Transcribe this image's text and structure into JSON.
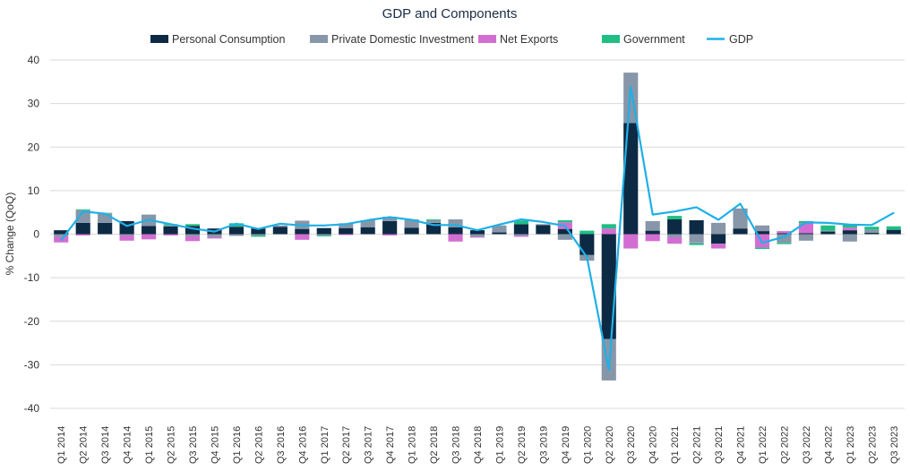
{
  "chart_data": {
    "type": "bar",
    "title": "GDP and Components",
    "ylabel": "% Change (QoQ)",
    "xlabel": "",
    "ylim": [
      -40,
      40
    ],
    "yticks": [
      40,
      30,
      20,
      10,
      0,
      -10,
      -20,
      -30,
      -40
    ],
    "categories": [
      "Q1 2014",
      "Q2 2014",
      "Q3 2014",
      "Q4 2014",
      "Q1 2015",
      "Q2 2015",
      "Q3 2015",
      "Q4 2015",
      "Q1 2016",
      "Q2 2016",
      "Q3 2016",
      "Q4 2016",
      "Q1 2017",
      "Q2 2017",
      "Q3 2017",
      "Q4 2017",
      "Q1 2018",
      "Q2 2018",
      "Q3 2018",
      "Q4 2018",
      "Q1 2019",
      "Q2 2019",
      "Q3 2019",
      "Q4 2019",
      "Q1 2020",
      "Q2 2020",
      "Q3 2020",
      "Q4 2020",
      "Q1 2021",
      "Q2 2021",
      "Q3 2021",
      "Q4 2021",
      "Q1 2022",
      "Q2 2022",
      "Q3 2022",
      "Q4 2022",
      "Q1 2023",
      "Q2 2023",
      "Q3 2023"
    ],
    "series": [
      {
        "name": "Personal Consumption",
        "color": "#0d2a45",
        "kind": "bar",
        "values": [
          0.9,
          2.6,
          2.6,
          3.0,
          1.9,
          1.8,
          1.9,
          1.3,
          1.7,
          1.3,
          1.7,
          1.2,
          1.4,
          1.4,
          1.6,
          3.0,
          1.5,
          2.6,
          1.6,
          0.9,
          0.4,
          2.3,
          2.1,
          1.2,
          -4.8,
          -24.1,
          25.5,
          0.8,
          3.4,
          3.2,
          -2.2,
          1.3,
          0.7,
          0.2,
          0.2,
          0.6,
          0.9,
          0.3,
          1.0
        ]
      },
      {
        "name": "Private Domestic Investment",
        "color": "#8796a8",
        "kind": "bar",
        "values": [
          -0.6,
          2.9,
          2.2,
          -0.3,
          2.6,
          0.2,
          -0.5,
          -0.7,
          -0.4,
          -0.3,
          0.3,
          1.9,
          -0.3,
          1.1,
          1.6,
          1.0,
          1.9,
          0.6,
          1.8,
          -0.6,
          1.6,
          -0.3,
          0.2,
          -1.3,
          -1.3,
          -9.5,
          11.6,
          2.2,
          -0.7,
          -1.8,
          2.6,
          4.6,
          1.3,
          -2.0,
          -1.5,
          0.2,
          -1.7,
          0.7,
          0.0
        ]
      },
      {
        "name": "Net Exports",
        "color": "#d26ed2",
        "kind": "bar",
        "values": [
          -1.3,
          -0.3,
          0.0,
          -1.2,
          -1.2,
          -0.3,
          -1.1,
          -0.3,
          0.0,
          0.0,
          0.0,
          -1.3,
          0.0,
          -0.2,
          0.0,
          -0.3,
          0.0,
          0.0,
          -1.7,
          -0.2,
          0.0,
          -0.3,
          0.0,
          1.5,
          0.0,
          1.3,
          -3.3,
          -1.6,
          -1.5,
          -0.2,
          -1.1,
          0.0,
          -3.1,
          0.5,
          2.3,
          0.0,
          0.6,
          0.0,
          0.0
        ]
      },
      {
        "name": "Government",
        "color": "#1fbf84",
        "kind": "bar",
        "values": [
          0.0,
          0.2,
          0.1,
          0.0,
          0.0,
          0.3,
          0.4,
          0.0,
          0.8,
          -0.3,
          0.0,
          0.0,
          -0.2,
          0.0,
          0.0,
          0.0,
          0.0,
          0.2,
          0.0,
          0.0,
          0.0,
          0.8,
          0.0,
          0.5,
          0.8,
          1.0,
          0.0,
          0.0,
          0.8,
          -0.5,
          0.0,
          0.0,
          -0.3,
          -0.3,
          0.5,
          1.2,
          0.8,
          0.7,
          0.8
        ]
      },
      {
        "name": "GDP",
        "color": "#1fb0e6",
        "kind": "line",
        "values": [
          -1.4,
          5.2,
          4.7,
          1.9,
          3.3,
          2.3,
          1.3,
          0.6,
          2.4,
          1.2,
          2.4,
          2.0,
          2.0,
          2.3,
          3.2,
          3.9,
          3.3,
          2.1,
          2.1,
          0.9,
          2.2,
          3.4,
          2.8,
          1.9,
          -5.3,
          -31.2,
          33.8,
          4.5,
          5.2,
          6.2,
          3.3,
          7.0,
          -2.0,
          -0.6,
          2.7,
          2.6,
          2.2,
          2.1,
          4.9
        ]
      }
    ]
  }
}
